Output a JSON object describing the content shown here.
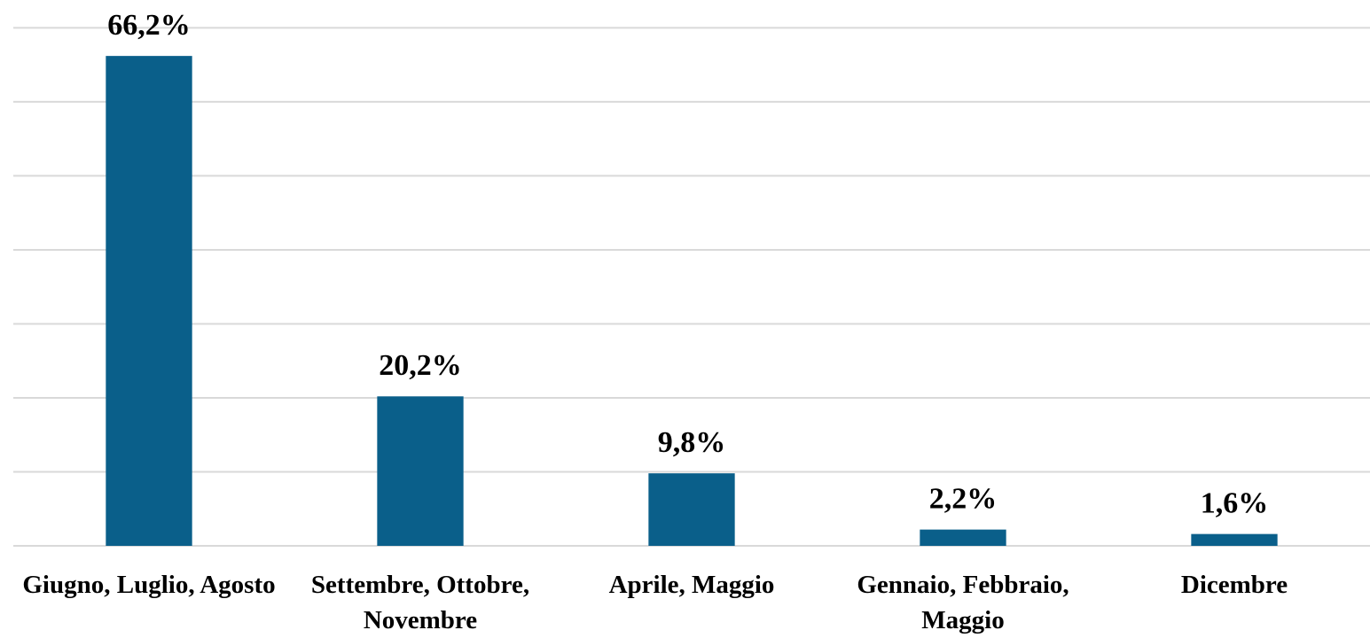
{
  "chart_data": {
    "type": "bar",
    "categories": [
      "Giugno, Luglio, Agosto",
      "Settembre, Ottobre, Novembre",
      "Aprile, Maggio",
      "Gennaio, Febbraio, Maggio",
      "Dicembre"
    ],
    "values": [
      66.2,
      20.2,
      9.8,
      2.2,
      1.6
    ],
    "value_labels": [
      "66,2%",
      "20,2%",
      "9,8%",
      "2,2%",
      "1,6%"
    ],
    "color": "#0a5f8a",
    "ylim": [
      0,
      70
    ],
    "yticks": [
      0,
      10,
      20,
      30,
      40,
      50,
      60,
      70
    ],
    "grid": true
  }
}
